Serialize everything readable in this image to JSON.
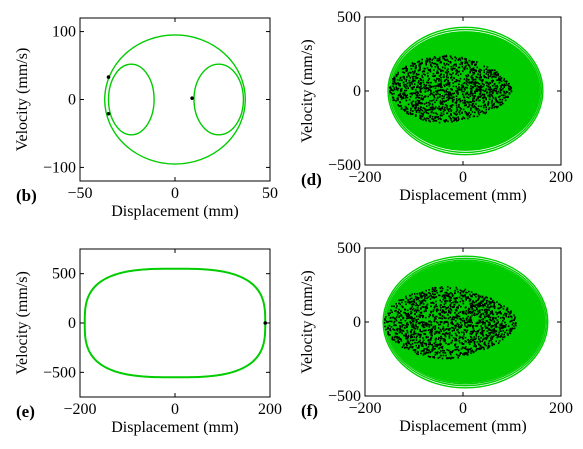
{
  "chart_data": [
    {
      "id": "b",
      "panel_label": "(b)",
      "type": "line",
      "xlabel": "Displacement (mm)",
      "ylabel": "Velocity (mm/s)",
      "xlim": [
        -50,
        50
      ],
      "ylim": [
        -120,
        120
      ],
      "xticks": [
        -50,
        0,
        50
      ],
      "yticks": [
        -100,
        0,
        100
      ],
      "orbit_color": "#00cc00",
      "point_color": "#000000",
      "series": [
        {
          "kind": "ellipse",
          "cx": 0,
          "cy": 0,
          "rx": 37,
          "ry": 95
        },
        {
          "kind": "ellipse",
          "cx": -23,
          "cy": 0,
          "rx": 12,
          "ry": 52
        },
        {
          "kind": "ellipse",
          "cx": 23,
          "cy": 0,
          "rx": 13,
          "ry": 52
        }
      ],
      "points": [
        [
          -35,
          33
        ],
        [
          -35,
          -21
        ],
        [
          9,
          2
        ]
      ]
    },
    {
      "id": "d",
      "panel_label": "(d)",
      "type": "line",
      "xlabel": "Displacement (mm)",
      "ylabel": "Velocity (mm/s)",
      "xlim": [
        -200,
        200
      ],
      "ylim": [
        -500,
        500
      ],
      "xticks": [
        -200,
        0,
        200
      ],
      "yticks": [
        -500,
        0,
        500
      ],
      "orbit_color": "#00cc00",
      "point_color": "#000000",
      "series": [
        {
          "kind": "filled-ellipse",
          "cx": 5,
          "cy": 0,
          "rx": 150,
          "ry": 395
        },
        {
          "kind": "ellipse",
          "cx": 5,
          "cy": 0,
          "rx": 158,
          "ry": 430
        },
        {
          "kind": "ellipse",
          "cx": 5,
          "cy": 0,
          "rx": 155,
          "ry": 415
        },
        {
          "kind": "ellipse",
          "cx": 5,
          "cy": 0,
          "rx": 152,
          "ry": 400
        }
      ],
      "point_cloud": {
        "x_range": [
          -150,
          100
        ],
        "y_range": [
          -220,
          240
        ],
        "center": [
          -30,
          20
        ],
        "count": 1400
      }
    },
    {
      "id": "e",
      "panel_label": "(e)",
      "type": "line",
      "xlabel": "Displacement (mm)",
      "ylabel": "Velocity (mm/s)",
      "xlim": [
        -200,
        200
      ],
      "ylim": [
        -750,
        750
      ],
      "xticks": [
        -200,
        0,
        200
      ],
      "yticks": [
        -500,
        0,
        500
      ],
      "orbit_color": "#00cc00",
      "point_color": "#000000",
      "series": [
        {
          "kind": "superellipse",
          "cx": 0,
          "cy": 0,
          "rx": 190,
          "ry": 550,
          "n": 3
        }
      ],
      "points": [
        [
          190,
          0
        ]
      ]
    },
    {
      "id": "f",
      "panel_label": "(f)",
      "type": "line",
      "xlabel": "Displacement (mm)",
      "ylabel": "Velocity (mm/s)",
      "xlim": [
        -200,
        200
      ],
      "ylim": [
        -500,
        500
      ],
      "xticks": [
        -200,
        0,
        200
      ],
      "yticks": [
        -500,
        0,
        500
      ],
      "orbit_color": "#00cc00",
      "point_color": "#000000",
      "series": [
        {
          "kind": "filled-ellipse",
          "cx": 5,
          "cy": 0,
          "rx": 160,
          "ry": 410
        },
        {
          "kind": "ellipse",
          "cx": 5,
          "cy": 0,
          "rx": 168,
          "ry": 445
        },
        {
          "kind": "ellipse",
          "cx": 5,
          "cy": 0,
          "rx": 165,
          "ry": 430
        },
        {
          "kind": "ellipse",
          "cx": 5,
          "cy": 0,
          "rx": 162,
          "ry": 418
        }
      ],
      "point_cloud": {
        "x_range": [
          -160,
          110
        ],
        "y_range": [
          -250,
          240
        ],
        "center": [
          -30,
          0
        ],
        "count": 1600
      }
    }
  ]
}
